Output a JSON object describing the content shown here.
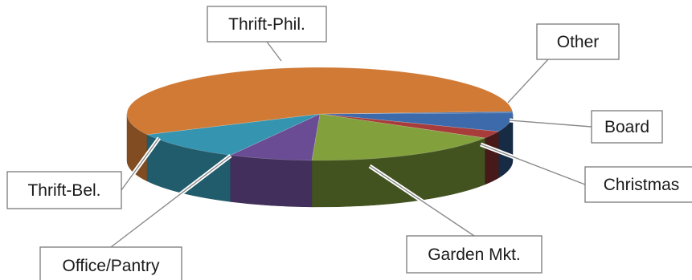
{
  "chart_data": {
    "type": "pie",
    "style": "3d-exploded-perspective",
    "title": "",
    "categories": [
      "Other",
      "Board",
      "Christmas",
      "Garden Mkt.",
      "Office/Pantry",
      "Thrift-Bel.",
      "Thrift-Phil."
    ],
    "values": [
      0.5,
      6.5,
      2.5,
      17,
      7,
      10,
      56.5
    ],
    "colors": [
      "#3c6aaa",
      "#3c6aaa",
      "#a83c3a",
      "#82a03c",
      "#6a4c94",
      "#3594b0",
      "#d07a35"
    ],
    "legend": "none (callout labels)"
  }
}
